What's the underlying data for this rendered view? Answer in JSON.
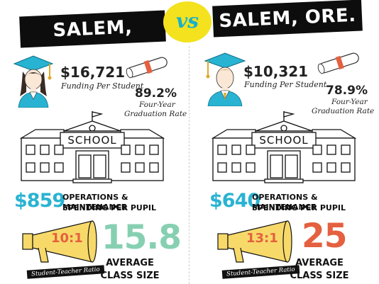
{
  "header": {
    "left_city": "SALEM, MASS.",
    "right_city": "SALEM, ORE.",
    "vs_label": "VS"
  },
  "cities": [
    {
      "funding_amount": "$16,721",
      "funding_label": "Funding Per Student",
      "graduation_rate": "89.2%",
      "graduation_label_1": "Four-Year",
      "graduation_label_2": "Graduation Rate",
      "school_sign": "SCHOOL",
      "ops_amount": "$859",
      "ops_label_1": "OPERATIONS & MAINTENANCE",
      "ops_label_2": "SPENDING PER PUPIL",
      "ratio": "10:1",
      "ratio_caption": "Student-Teacher Ratio",
      "class_size": "15.8",
      "class_size_label_1": "AVERAGE",
      "class_size_label_2": "CLASS SIZE",
      "class_size_color": "#86d0b1"
    },
    {
      "funding_amount": "$10,321",
      "funding_label": "Funding Per Student",
      "graduation_rate": "78.9%",
      "graduation_label_1": "Four-Year",
      "graduation_label_2": "Graduation Rate",
      "school_sign": "SCHOOL",
      "ops_amount": "$640",
      "ops_label_1": "OPERATIONS & MAINTENANCE",
      "ops_label_2": "SPENDING PER PUPIL",
      "ratio": "13:1",
      "ratio_caption": "Student-Teacher Ratio",
      "class_size": "25",
      "class_size_label_1": "AVERAGE",
      "class_size_label_2": "CLASS SIZE",
      "class_size_color": "#e4603f"
    }
  ],
  "colors": {
    "accent_blue": "#29b3d2",
    "vs_yellow": "#f3e21d",
    "megaphone_yellow": "#f7d96a",
    "ratio_orange": "#e4603f",
    "mass_green": "#86d0b1",
    "ore_orange": "#e4603f"
  },
  "icons": [
    "graduate-female-icon",
    "graduate-male-icon",
    "diploma-icon",
    "school-building-icon",
    "megaphone-icon"
  ]
}
